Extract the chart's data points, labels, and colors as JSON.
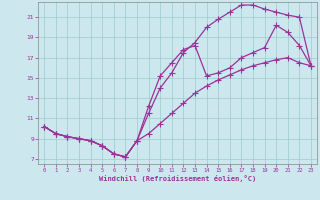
{
  "xlabel": "Windchill (Refroidissement éolien,°C)",
  "bg_color": "#cce8ee",
  "line_color": "#993399",
  "marker": "+",
  "markersize": 4,
  "linewidth": 0.9,
  "xlim": [
    -0.5,
    23.5
  ],
  "ylim": [
    6.5,
    22.5
  ],
  "xticks": [
    0,
    1,
    2,
    3,
    4,
    5,
    6,
    7,
    8,
    9,
    10,
    11,
    12,
    13,
    14,
    15,
    16,
    17,
    18,
    19,
    20,
    21,
    22,
    23
  ],
  "yticks": [
    7,
    9,
    11,
    13,
    15,
    17,
    19,
    21
  ],
  "grid_color": "#99cccc",
  "series1_x": [
    0,
    1,
    2,
    3,
    4,
    5,
    6,
    7,
    8,
    9,
    10,
    11,
    12,
    13,
    14,
    15,
    16,
    17,
    18,
    19,
    20,
    21,
    22,
    23
  ],
  "series1_y": [
    10.2,
    9.5,
    9.2,
    9.0,
    8.8,
    8.3,
    7.5,
    7.2,
    8.8,
    11.5,
    14.0,
    15.5,
    17.5,
    18.5,
    20.0,
    20.8,
    21.5,
    22.2,
    22.2,
    21.8,
    21.5,
    21.2,
    21.0,
    16.2
  ],
  "series2_x": [
    0,
    1,
    2,
    3,
    4,
    5,
    6,
    7,
    8,
    9,
    10,
    11,
    12,
    13,
    14,
    15,
    16,
    17,
    18,
    19,
    20,
    21,
    22,
    23
  ],
  "series2_y": [
    10.2,
    9.5,
    9.2,
    9.0,
    8.8,
    8.3,
    7.5,
    7.2,
    8.8,
    12.2,
    15.2,
    16.5,
    17.8,
    18.2,
    15.2,
    15.5,
    16.0,
    17.0,
    17.5,
    18.0,
    20.2,
    19.5,
    18.2,
    16.2
  ],
  "series3_x": [
    0,
    1,
    2,
    3,
    4,
    5,
    6,
    7,
    8,
    9,
    10,
    11,
    12,
    13,
    14,
    15,
    16,
    17,
    18,
    19,
    20,
    21,
    22,
    23
  ],
  "series3_y": [
    10.2,
    9.5,
    9.2,
    9.0,
    8.8,
    8.3,
    7.5,
    7.2,
    8.8,
    9.5,
    10.5,
    11.5,
    12.5,
    13.5,
    14.2,
    14.8,
    15.3,
    15.8,
    16.2,
    16.5,
    16.8,
    17.0,
    16.5,
    16.2
  ]
}
